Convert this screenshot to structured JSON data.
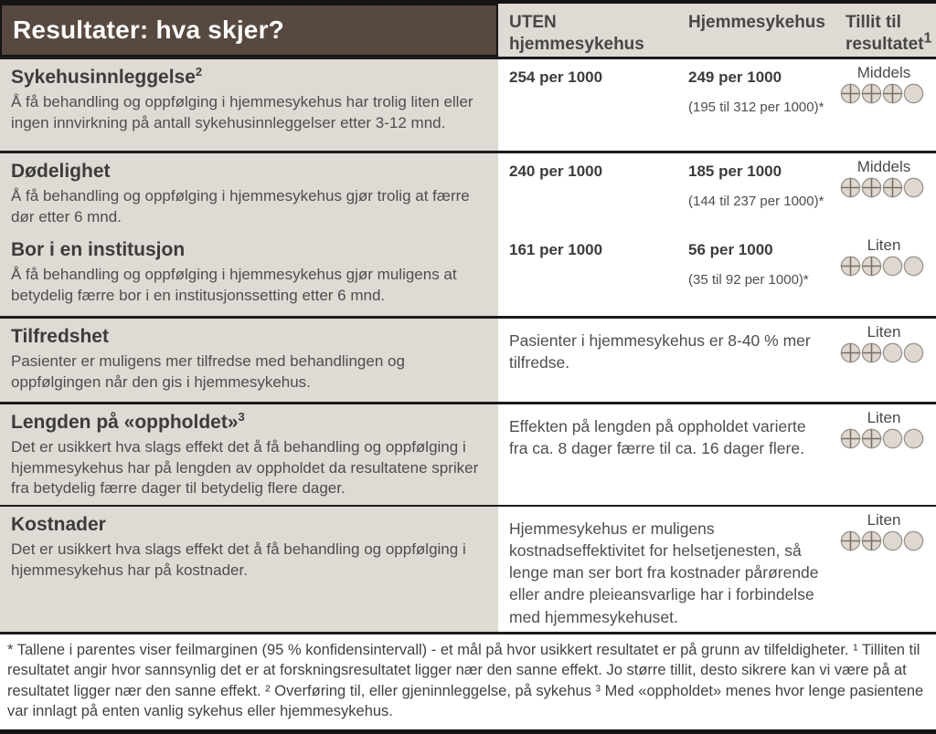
{
  "title": "Resultater: hva skjer?",
  "columns": {
    "without": "UTEN hjemmesykehus",
    "with": "Hjemmesykehus",
    "confidence_line1": "Tillit til",
    "confidence_line2": "resultatet",
    "confidence_sup": "1"
  },
  "rows": [
    {
      "title": "Sykehusinnleggelse",
      "title_sup": "2",
      "description": "Å få behandling og oppfølging i hjemmesykehus har trolig liten eller ingen innvirkning på antall sykehusinnleggelser etter 3-12 mnd.",
      "without_value": "254 per 1000",
      "with_value": "249 per 1000",
      "with_ci": "(195 til 312 per 1000)*",
      "confidence": {
        "label": "Middels",
        "filled": 3,
        "total": 4
      }
    },
    {
      "title": "Dødelighet",
      "title_sup": "",
      "description": "Å få behandling og oppfølging i hjemmesykehus gjør trolig at færre dør etter 6 mnd.",
      "without_value": "240 per 1000",
      "with_value": "185 per 1000",
      "with_ci": "(144 til 237 per 1000)*",
      "confidence": {
        "label": "Middels",
        "filled": 3,
        "total": 4
      }
    },
    {
      "title": "Bor i en institusjon",
      "title_sup": "",
      "description": "Å få behandling og oppfølging i hjemmesykehus gjør muligens at betydelig færre bor i en institusjonssetting etter 6 mnd.",
      "without_value": "161 per 1000",
      "with_value": "56 per 1000",
      "with_ci": "(35 til 92 per 1000)*",
      "confidence": {
        "label": "Liten",
        "filled": 2,
        "total": 4
      }
    },
    {
      "title": "Tilfredshet",
      "title_sup": "",
      "description": "Pasienter er muligens mer tilfredse med behandlingen og oppfølgingen når den gis i hjemmesykehus.",
      "merged_text": "Pasienter i hjemmesykehus er 8-40 % mer tilfredse.",
      "confidence": {
        "label": "Liten",
        "filled": 2,
        "total": 4
      }
    },
    {
      "title": "Lengden på «oppholdet»",
      "title_sup": "3",
      "description": "Det er usikkert hva slags effekt det å få behandling og oppfølging i hjemmesykehus har på lengden av oppholdet da resultatene spriker fra betydelig færre dager til betydelig flere dager.",
      "merged_text": "Effekten på lengden på oppholdet varierte fra ca. 8 dager færre til ca. 16 dager flere.",
      "confidence": {
        "label": "Liten",
        "filled": 2,
        "total": 4
      }
    },
    {
      "title": "Kostnader",
      "title_sup": "",
      "description": "Det er usikkert hva slags effekt det å få behandling og oppfølging i hjemmesykehus har på kostnader.",
      "merged_text": "Hjemmesykehus er muligens kostnadseffektivitet for helsetjenesten, så lenge man ser bort fra kostnader pårørende eller andre pleieansvarlige har i forbindelse med hjemmesykehuset.",
      "confidence": {
        "label": "Liten",
        "filled": 2,
        "total": 4
      }
    }
  ],
  "footnote": "* Tallene i parentes viser feilmarginen (95 % konfidensintervall) - et mål på hvor usikkert resultatet er på grunn av tilfeldigheter. ¹ Tilliten til resultatet angir hvor sannsynlig det er at forskningsresultatet ligger nær den sanne effekt. Jo større tillit, desto sikrere kan vi være på at resultatet ligger nær den sanne effekt. ² Overføring til, eller gjeninnleggelse, på sykehus ³ Med «oppholdet» menes hvor lenge pasientene var innlagt på enten vanlig sykehus eller hjemmesykehus.",
  "colors": {
    "header_brown": "#57493f",
    "cell_beige": "#dfdad3",
    "circle_fill": "#ded8d1",
    "circle_stroke": "#9a948c",
    "plus_color": "#7b6c61",
    "rule_black": "#1b1b1b"
  }
}
